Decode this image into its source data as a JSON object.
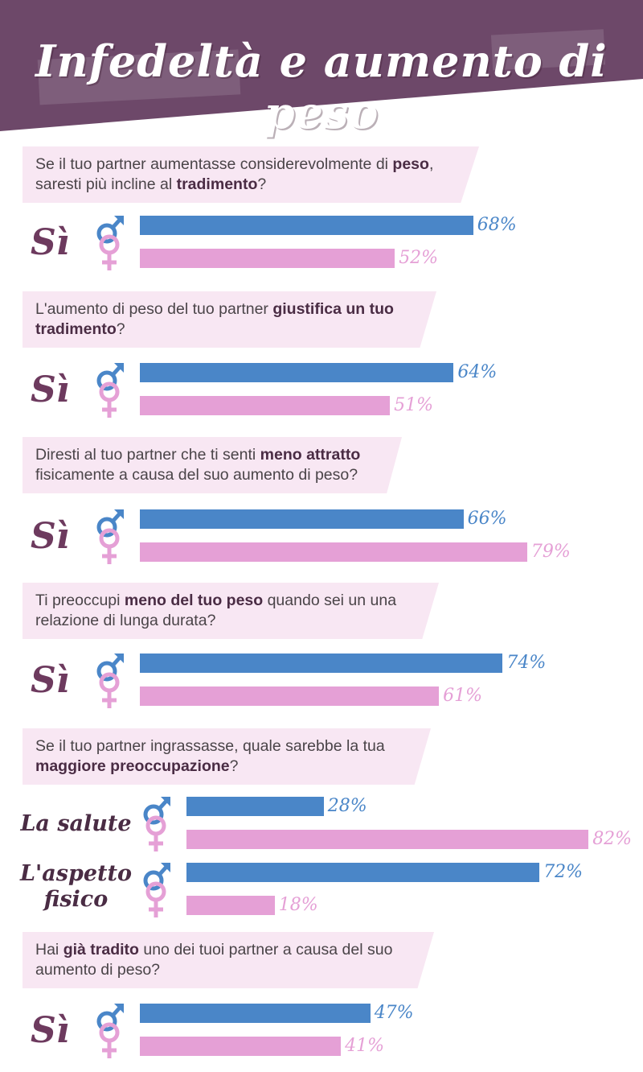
{
  "title": "Infedeltà e aumento di peso",
  "colors": {
    "banner": "#6d4869",
    "male": "#4a86c8",
    "female": "#e5a0d6",
    "question_bg": "#f8e7f3"
  },
  "icons": {
    "male": "male-symbol-icon",
    "female": "female-symbol-icon"
  },
  "questions": [
    {
      "parts": [
        {
          "t": "Se il tuo partner aumentasse considerevolmente di "
        },
        {
          "t": "peso",
          "b": true
        },
        {
          "t": ",\nsaresti più incline al "
        },
        {
          "t": "tradimento",
          "b": true
        },
        {
          "t": "?"
        }
      ]
    },
    {
      "parts": [
        {
          "t": "L'aumento di peso del tuo partner "
        },
        {
          "t": "giustifica un tuo\ntradimento",
          "b": true
        },
        {
          "t": "?"
        }
      ]
    },
    {
      "parts": [
        {
          "t": "Diresti al tuo partner che ti senti "
        },
        {
          "t": "meno attratto",
          "b": true
        },
        {
          "t": "\nfisicamente a causa del suo aumento di peso?"
        }
      ]
    },
    {
      "parts": [
        {
          "t": "Ti preoccupi "
        },
        {
          "t": "meno del tuo peso",
          "b": true
        },
        {
          "t": " quando sei un una\nrelazione di lunga durata?"
        }
      ]
    },
    {
      "parts": [
        {
          "t": "Se il tuo partner ingrassasse, quale sarebbe la tua\n"
        },
        {
          "t": "maggiore preoccupazione",
          "b": true
        },
        {
          "t": "?"
        }
      ]
    },
    {
      "parts": [
        {
          "t": "Hai "
        },
        {
          "t": "già tradito",
          "b": true
        },
        {
          "t": " uno dei tuoi partner a causa del suo\naumento di peso?"
        }
      ]
    }
  ],
  "chart_data": {
    "type": "bar",
    "orientation": "horizontal",
    "title": "Infedeltà e aumento di peso",
    "series_colors": {
      "male": "#4a86c8",
      "female": "#e5a0d6"
    },
    "value_unit": "%",
    "xlim": [
      0,
      100
    ],
    "groups": [
      {
        "question": 0,
        "rows": [
          {
            "label": "Sì",
            "male": 68,
            "female": 52,
            "male_label": "68%",
            "female_label": "52%"
          }
        ]
      },
      {
        "question": 1,
        "rows": [
          {
            "label": "Sì",
            "male": 64,
            "female": 51,
            "male_label": "64%",
            "female_label": "51%"
          }
        ]
      },
      {
        "question": 2,
        "rows": [
          {
            "label": "Sì",
            "male": 66,
            "female": 79,
            "male_label": "66%",
            "female_label": "79%"
          }
        ]
      },
      {
        "question": 3,
        "rows": [
          {
            "label": "Sì",
            "male": 74,
            "female": 61,
            "male_label": "74%",
            "female_label": "61%"
          }
        ]
      },
      {
        "question": 4,
        "rows": [
          {
            "label": "La salute",
            "male": 28,
            "female": 82,
            "male_label": "28%",
            "female_label": "82%"
          },
          {
            "label": "L'aspetto\nfisico",
            "male": 72,
            "female": 18,
            "male_label": "72%",
            "female_label": "18%"
          }
        ]
      },
      {
        "question": 5,
        "rows": [
          {
            "label": "Sì",
            "male": 47,
            "female": 41,
            "male_label": "47%",
            "female_label": "41%"
          }
        ]
      }
    ]
  }
}
